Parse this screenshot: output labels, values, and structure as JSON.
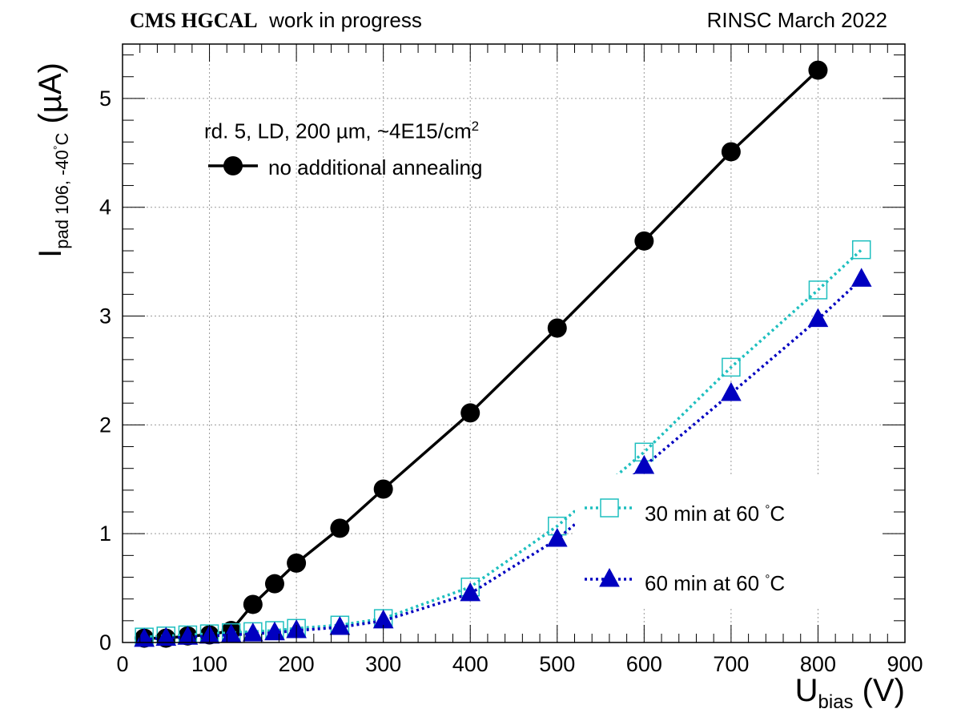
{
  "header": {
    "left_bold": "CMS HGCAL",
    "left_rest": "work in progress",
    "right": "RINSC March 2022"
  },
  "annotation": {
    "sample_text": "rd. 5, LD, 200 µm, ~4E15/cm",
    "sample_sup": "2"
  },
  "axes": {
    "x_label_main": "U",
    "x_label_sub": "bias",
    "x_label_unit": "(V)",
    "y_label_main": "I",
    "y_label_sub": "pad 106, -40",
    "y_label_deg": "°",
    "y_label_c": "C",
    "y_label_unit": "(µA)"
  },
  "legend": {
    "s1_label": "no additional annealing",
    "s2_label": "30 min at 60",
    "s2_deg": "°",
    "s2_c": "C",
    "s3_label": "60 min at 60",
    "s3_deg": "°",
    "s3_c": "C"
  },
  "colors": {
    "s1": "#000000",
    "s2": "#1ebfbf",
    "s3": "#0000c0",
    "grid": "#9a9a9a"
  },
  "chart_data": {
    "type": "scatter",
    "xlim": [
      0,
      900
    ],
    "ylim": [
      0,
      5.5
    ],
    "x_ticks": [
      0,
      100,
      200,
      300,
      400,
      500,
      600,
      700,
      800,
      900
    ],
    "y_ticks": [
      0,
      1,
      2,
      3,
      4,
      5
    ],
    "grid": true,
    "legend_position": "top-left and lower-right",
    "series": [
      {
        "name": "no additional annealing",
        "marker": "filled-circle",
        "line": "solid",
        "x": [
          25,
          50,
          75,
          100,
          125,
          150,
          175,
          200,
          250,
          300,
          400,
          500,
          600,
          700,
          800
        ],
        "y": [
          0.04,
          0.04,
          0.06,
          0.07,
          0.11,
          0.35,
          0.54,
          0.73,
          1.05,
          1.41,
          2.11,
          2.89,
          3.69,
          4.51,
          5.26
        ]
      },
      {
        "name": "30 min at 60 °C",
        "marker": "open-square",
        "line": "dotted",
        "x": [
          25,
          50,
          75,
          100,
          125,
          150,
          175,
          200,
          250,
          300,
          400,
          500,
          600,
          700,
          800,
          850
        ],
        "y": [
          0.05,
          0.06,
          0.07,
          0.08,
          0.09,
          0.1,
          0.11,
          0.13,
          0.16,
          0.22,
          0.51,
          1.07,
          1.75,
          2.53,
          3.24,
          3.61
        ]
      },
      {
        "name": "60 min at 60 °C",
        "marker": "filled-triangle",
        "line": "dotted",
        "x": [
          25,
          50,
          75,
          100,
          125,
          150,
          175,
          200,
          250,
          300,
          400,
          500,
          600,
          700,
          800,
          850
        ],
        "y": [
          0.03,
          0.04,
          0.05,
          0.06,
          0.07,
          0.08,
          0.09,
          0.11,
          0.14,
          0.2,
          0.45,
          0.95,
          1.62,
          2.29,
          2.97,
          3.34
        ]
      }
    ]
  }
}
